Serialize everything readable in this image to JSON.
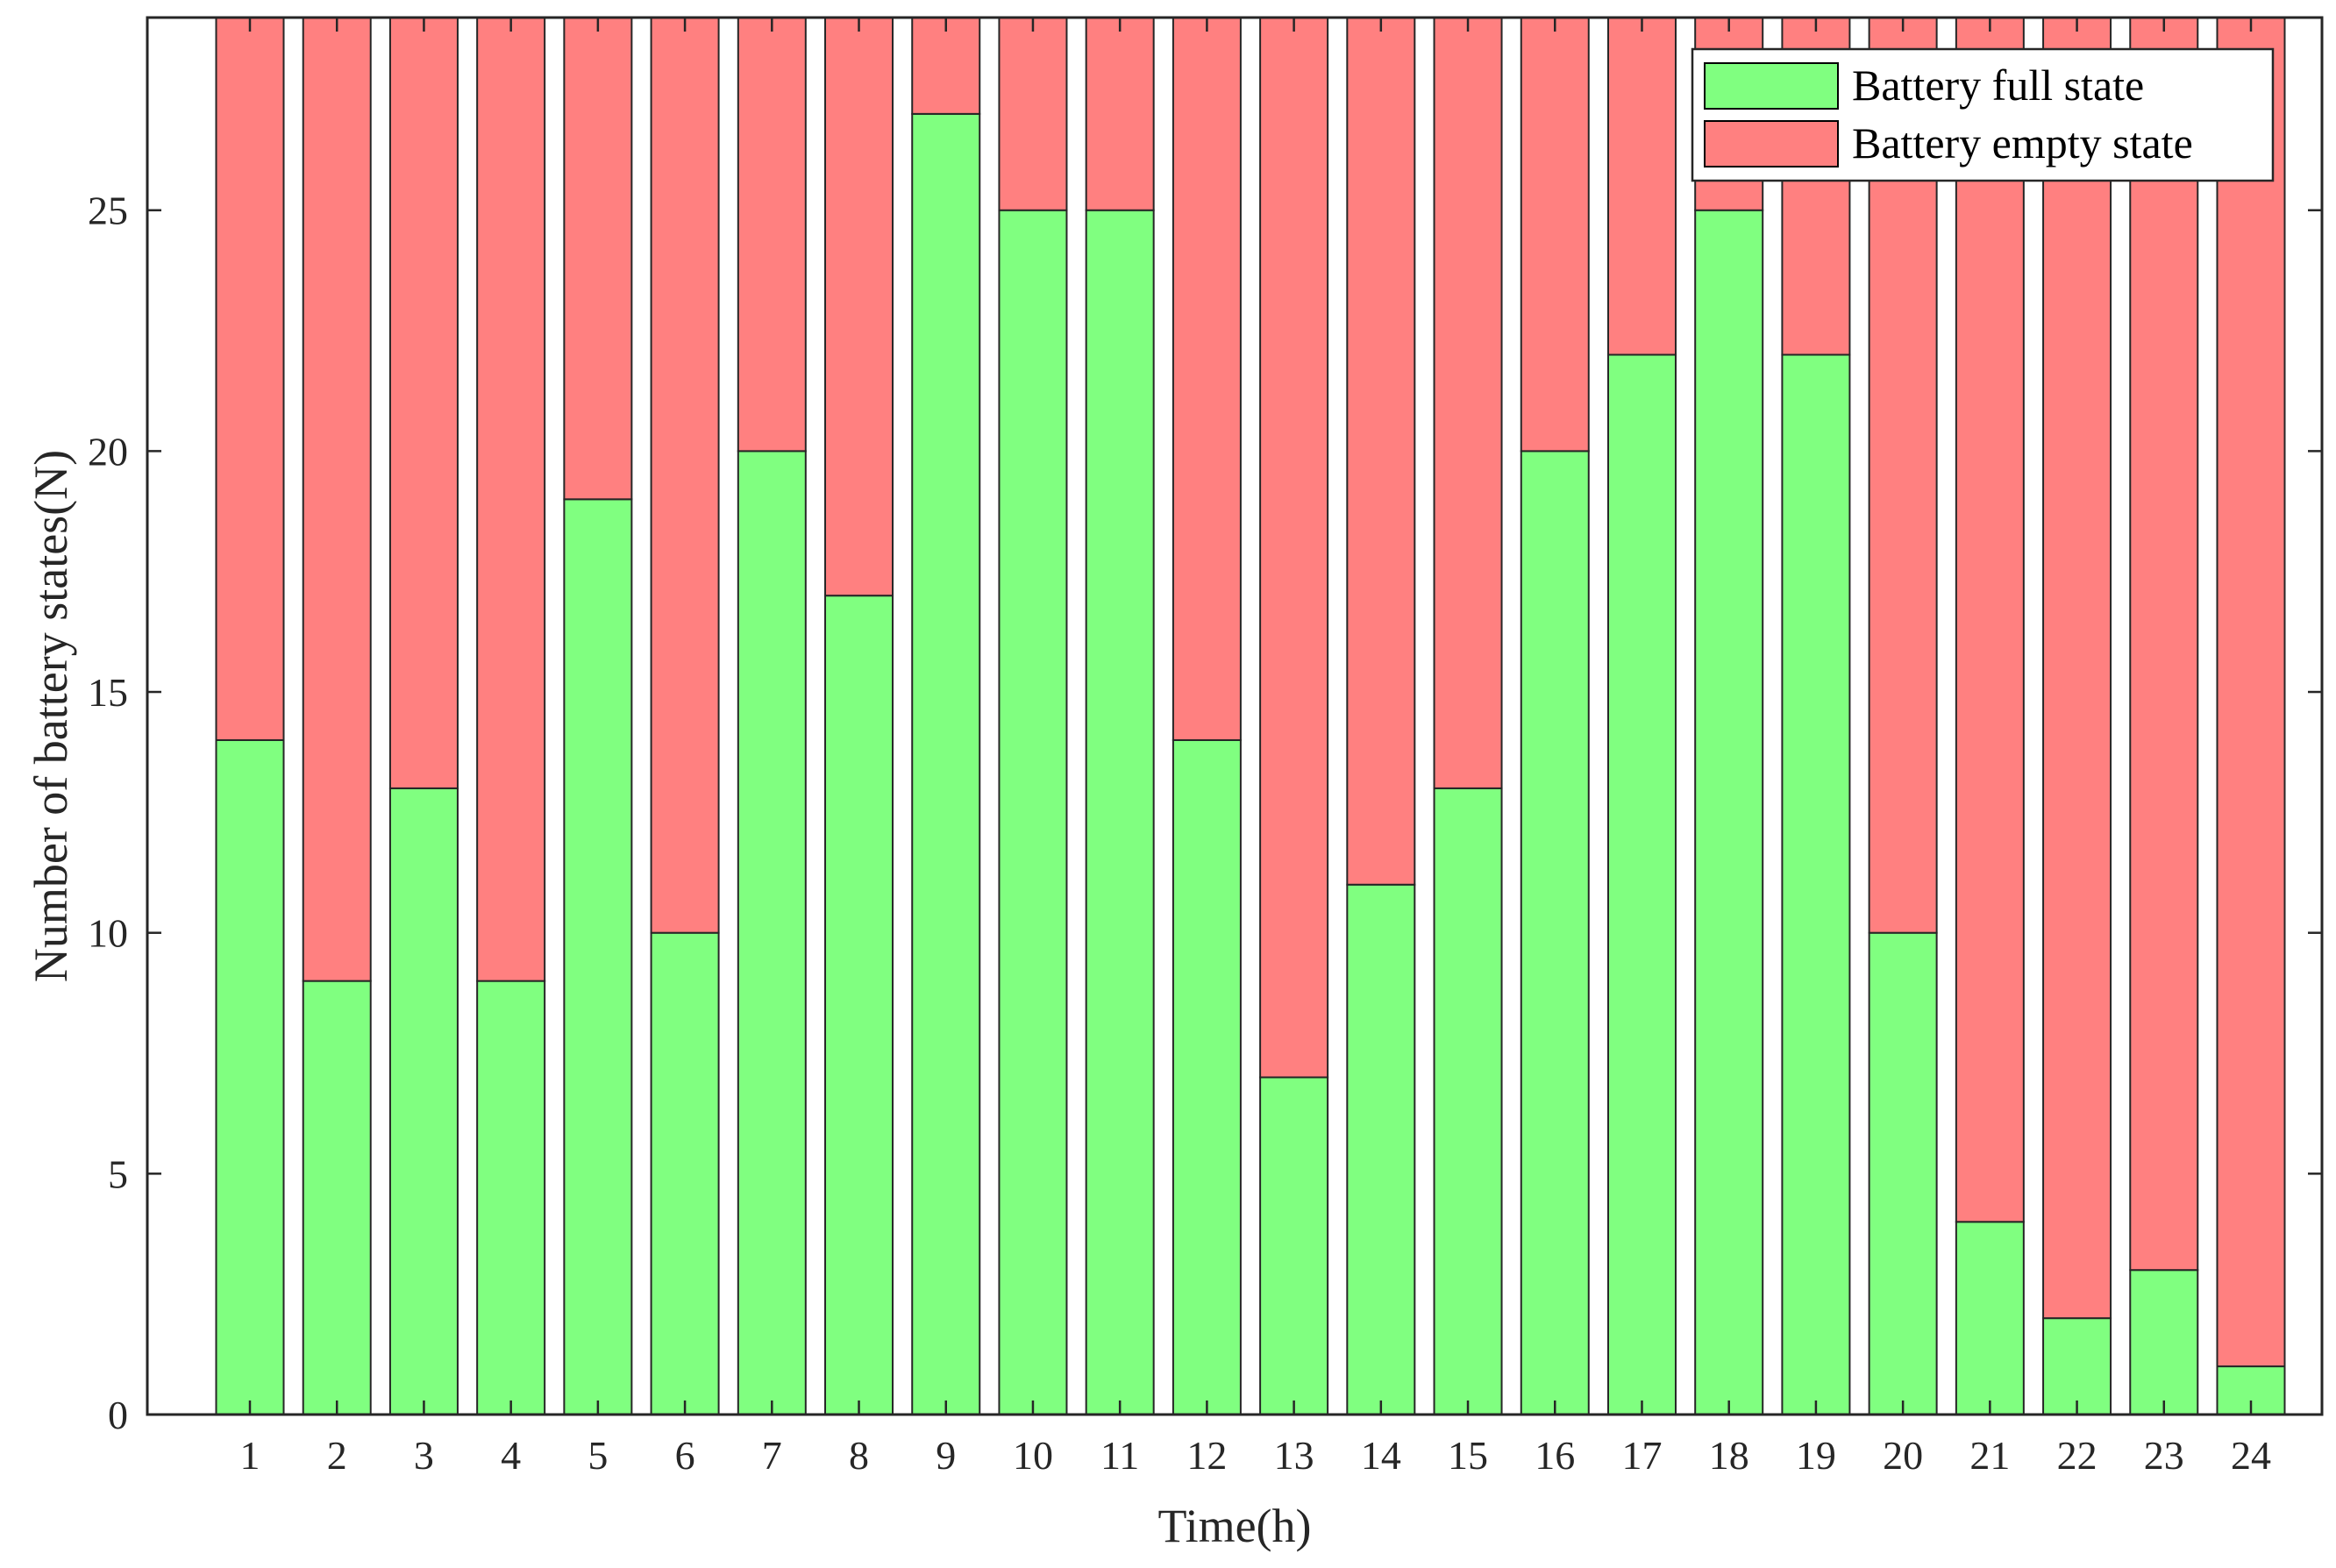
{
  "chart_data": {
    "type": "bar",
    "stacked": true,
    "categories": [
      "1",
      "2",
      "3",
      "4",
      "5",
      "6",
      "7",
      "8",
      "9",
      "10",
      "11",
      "12",
      "13",
      "14",
      "15",
      "16",
      "17",
      "18",
      "19",
      "20",
      "21",
      "22",
      "23",
      "24"
    ],
    "series": [
      {
        "name": "Battery full state",
        "color": "#80ff80",
        "values": [
          14,
          9,
          13,
          9,
          19,
          10,
          20,
          17,
          27,
          25,
          25,
          14,
          7,
          11,
          13,
          20,
          22,
          25,
          22,
          10,
          4,
          2,
          3,
          1
        ]
      },
      {
        "name": "Battery empty state",
        "color": "#ff8080",
        "values": [
          15,
          20,
          16,
          20,
          10,
          19,
          9,
          12,
          2,
          4,
          4,
          15,
          22,
          18,
          16,
          9,
          7,
          4,
          7,
          19,
          25,
          27,
          26,
          28
        ]
      }
    ],
    "xlabel": "Time(h)",
    "ylabel": "Number of battery states(N)",
    "ylim": [
      0,
      29
    ],
    "yticks": [
      0,
      5,
      10,
      15,
      20,
      25
    ],
    "grid": false,
    "legend_position": "top-right"
  }
}
